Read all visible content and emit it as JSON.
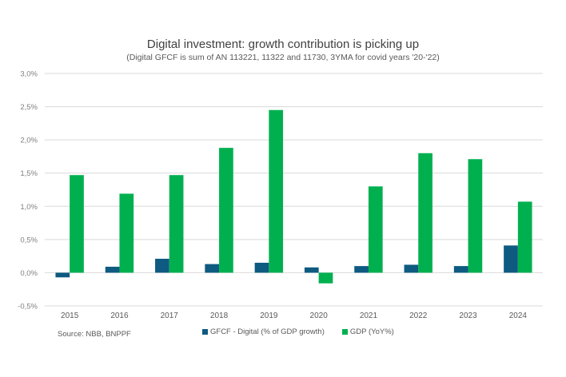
{
  "chart_data": {
    "type": "bar",
    "title": "Digital investment: growth contribution  is picking up",
    "subtitle": "(Digital GFCF is sum of AN 113221, 11322 and 11730, 3YMA for covid years '20-'22)",
    "xlabel": "",
    "ylabel": "",
    "categories": [
      "2015",
      "2016",
      "2017",
      "2018",
      "2019",
      "2020",
      "2021",
      "2022",
      "2023",
      "2024"
    ],
    "series": [
      {
        "name": "GFCF - Digital (% of GDP growth)",
        "color": "#0e5a80",
        "values": [
          -0.07,
          0.09,
          0.21,
          0.13,
          0.15,
          0.08,
          0.1,
          0.12,
          0.1,
          0.41
        ]
      },
      {
        "name": "GDP (YoY%)",
        "color": "#00b04f",
        "values": [
          1.47,
          1.19,
          1.47,
          1.88,
          2.45,
          -0.16,
          1.3,
          1.8,
          1.71,
          1.07
        ]
      }
    ],
    "ylim": [
      -0.5,
      3.0
    ],
    "yticks": [
      3.0,
      2.5,
      2.0,
      1.5,
      1.0,
      0.5,
      0.0,
      -0.5
    ],
    "ytick_labels": [
      "3,0%",
      "2,5%",
      "2,0%",
      "1,5%",
      "1,0%",
      "0,5%",
      "0,0%",
      "-0,5%"
    ],
    "grid": true,
    "legend_position": "bottom",
    "source": "Source: NBB, BNPPF"
  }
}
